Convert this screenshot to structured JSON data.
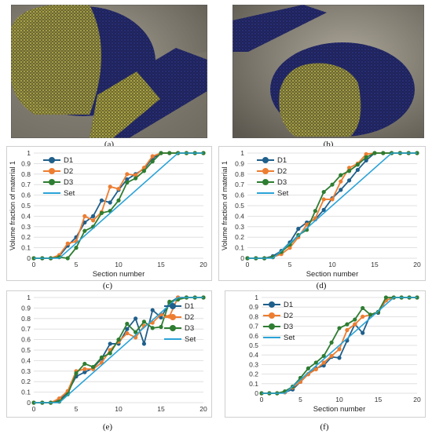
{
  "images": [
    {
      "caption": "(a)"
    },
    {
      "caption": "(b)"
    }
  ],
  "colors": {
    "D1": "#1f5f8b",
    "D2": "#ed7d31",
    "D3": "#2e7d32",
    "Set": "#2aa3d8",
    "grid": "#d9d9d9",
    "axis_text": "#333333"
  },
  "chart_data": [
    {
      "type": "line",
      "caption": "(c)",
      "xlabel": "Section number",
      "ylabel": "Volume fraction of material 1",
      "xlim": [
        0,
        20
      ],
      "ylim": [
        0,
        1
      ],
      "xticks": [
        "0",
        "5",
        "10",
        "15",
        "20"
      ],
      "yticks": [
        "0",
        "0.1",
        "0.2",
        "0.3",
        "0.4",
        "0.5",
        "0.6",
        "0.7",
        "0.8",
        "0.9",
        "1"
      ],
      "grid": "horizontal",
      "legend_position": "top-left",
      "series": [
        {
          "name": "D1",
          "x": [
            0,
            1,
            2,
            3,
            4,
            5,
            6,
            7,
            8,
            9,
            10,
            11,
            12,
            13,
            14,
            15,
            16,
            17,
            18,
            19,
            20
          ],
          "y": [
            0,
            0,
            0,
            0.02,
            0.12,
            0.2,
            0.34,
            0.4,
            0.55,
            0.53,
            0.65,
            0.75,
            0.8,
            0.85,
            0.95,
            1,
            1,
            1,
            1,
            1,
            1
          ]
        },
        {
          "name": "D2",
          "x": [
            0,
            1,
            2,
            3,
            4,
            5,
            6,
            7,
            8,
            9,
            10,
            11,
            12,
            13,
            14,
            15,
            16,
            17,
            18,
            19,
            20
          ],
          "y": [
            0,
            0,
            0,
            0.03,
            0.14,
            0.16,
            0.4,
            0.36,
            0.44,
            0.68,
            0.66,
            0.8,
            0.79,
            0.86,
            0.97,
            1,
            1,
            1,
            1,
            1,
            1
          ]
        },
        {
          "name": "D3",
          "x": [
            0,
            1,
            2,
            3,
            4,
            5,
            6,
            7,
            8,
            9,
            10,
            11,
            12,
            13,
            14,
            15,
            16,
            17,
            18,
            19,
            20
          ],
          "y": [
            0,
            0,
            0,
            0.01,
            0,
            0.1,
            0.26,
            0.3,
            0.43,
            0.45,
            0.55,
            0.72,
            0.76,
            0.83,
            0.92,
            1,
            1,
            1,
            1,
            1,
            1
          ]
        },
        {
          "name": "Set",
          "x": [
            0,
            3,
            17,
            20
          ],
          "y": [
            0,
            0,
            1,
            1
          ],
          "markers": false
        }
      ]
    },
    {
      "type": "line",
      "caption": "(d)",
      "xlabel": "Section number",
      "ylabel": "Volume fraction of material 1",
      "xlim": [
        0,
        20
      ],
      "ylim": [
        0,
        1
      ],
      "xticks": [
        "0",
        "5",
        "10",
        "15",
        "20"
      ],
      "yticks": [
        "0",
        "0.1",
        "0.2",
        "0.3",
        "0.4",
        "0.5",
        "0.6",
        "0.7",
        "0.8",
        "0.9",
        "1"
      ],
      "grid": "horizontal",
      "legend_position": "top-left",
      "series": [
        {
          "name": "D1",
          "x": [
            0,
            1,
            2,
            3,
            4,
            5,
            6,
            7,
            8,
            9,
            10,
            11,
            12,
            13,
            14,
            15,
            16,
            17,
            18,
            19,
            20
          ],
          "y": [
            0,
            0,
            0,
            0.02,
            0.07,
            0.15,
            0.28,
            0.34,
            0.37,
            0.46,
            0.57,
            0.65,
            0.74,
            0.84,
            0.93,
            1,
            1,
            1,
            1,
            1,
            1
          ]
        },
        {
          "name": "D2",
          "x": [
            0,
            1,
            2,
            3,
            4,
            5,
            6,
            7,
            8,
            9,
            10,
            11,
            12,
            13,
            14,
            15,
            16,
            17,
            18,
            19,
            20
          ],
          "y": [
            0,
            0,
            0,
            0.01,
            0.04,
            0.1,
            0.2,
            0.32,
            0.38,
            0.56,
            0.56,
            0.73,
            0.86,
            0.9,
            0.99,
            1,
            1,
            1,
            1,
            1,
            1
          ]
        },
        {
          "name": "D3",
          "x": [
            0,
            1,
            2,
            3,
            4,
            5,
            6,
            7,
            8,
            9,
            10,
            11,
            12,
            13,
            14,
            15,
            16,
            17,
            18,
            19,
            20
          ],
          "y": [
            0,
            0,
            0,
            0.01,
            0.06,
            0.13,
            0.22,
            0.27,
            0.45,
            0.63,
            0.7,
            0.79,
            0.83,
            0.89,
            0.96,
            1,
            1,
            1,
            1,
            1,
            1
          ]
        },
        {
          "name": "Set",
          "x": [
            0,
            3,
            17,
            20
          ],
          "y": [
            0,
            0,
            1,
            1
          ],
          "markers": false
        }
      ]
    },
    {
      "type": "line",
      "caption": "(e)",
      "xlabel": "",
      "ylabel": "",
      "xlim": [
        0,
        20
      ],
      "ylim": [
        0,
        1
      ],
      "xticks": [
        "0",
        "5",
        "10",
        "15",
        "20"
      ],
      "yticks": [
        "0",
        "0.1",
        "0.2",
        "0.3",
        "0.4",
        "0.5",
        "0.6",
        "0.7",
        "0.8",
        "0.9",
        "1"
      ],
      "grid": "horizontal",
      "legend_position": "top-right",
      "series": [
        {
          "name": "D1",
          "x": [
            0,
            1,
            2,
            3,
            4,
            5,
            6,
            7,
            8,
            9,
            10,
            11,
            12,
            13,
            14,
            15,
            16,
            17,
            18,
            19,
            20
          ],
          "y": [
            0,
            0,
            0,
            0.02,
            0.1,
            0.25,
            0.29,
            0.33,
            0.42,
            0.56,
            0.56,
            0.7,
            0.8,
            0.56,
            0.88,
            0.81,
            0.95,
            1,
            1,
            1,
            1
          ]
        },
        {
          "name": "D2",
          "x": [
            0,
            1,
            2,
            3,
            4,
            5,
            6,
            7,
            8,
            9,
            10,
            11,
            12,
            13,
            14,
            15,
            16,
            17,
            18,
            19,
            20
          ],
          "y": [
            0,
            0,
            0,
            0.04,
            0.11,
            0.3,
            0.32,
            0.32,
            0.38,
            0.5,
            0.58,
            0.66,
            0.62,
            0.73,
            0.76,
            0.84,
            0.82,
            1,
            1,
            1,
            1
          ]
        },
        {
          "name": "D3",
          "x": [
            0,
            1,
            2,
            3,
            4,
            5,
            6,
            7,
            8,
            9,
            10,
            11,
            12,
            13,
            14,
            15,
            16,
            17,
            18,
            19,
            20
          ],
          "y": [
            0,
            0,
            0,
            0.01,
            0.08,
            0.28,
            0.37,
            0.34,
            0.43,
            0.47,
            0.6,
            0.75,
            0.67,
            0.77,
            0.71,
            0.72,
            0.96,
            0.98,
            1,
            1,
            1
          ]
        },
        {
          "name": "Set",
          "x": [
            0,
            3,
            17,
            20
          ],
          "y": [
            0,
            0,
            1,
            1
          ],
          "markers": false
        }
      ]
    },
    {
      "type": "line",
      "caption": "(f)",
      "xlabel": "Section number",
      "ylabel": "",
      "xlim": [
        0,
        20
      ],
      "ylim": [
        0,
        1
      ],
      "xticks": [
        "0",
        "5",
        "10",
        "15",
        "20"
      ],
      "yticks": [
        "0",
        "0.1",
        "0.2",
        "0.3",
        "0.4",
        "0.5",
        "0.6",
        "0.7",
        "0.8",
        "0.9",
        "1"
      ],
      "grid": "horizontal",
      "legend_position": "top-left",
      "series": [
        {
          "name": "D1",
          "x": [
            0,
            1,
            2,
            3,
            4,
            5,
            6,
            7,
            8,
            9,
            10,
            11,
            12,
            13,
            14,
            15,
            16,
            17,
            18,
            19,
            20
          ],
          "y": [
            0,
            0,
            0,
            0.01,
            0.04,
            0.12,
            0.2,
            0.26,
            0.29,
            0.38,
            0.37,
            0.55,
            0.72,
            0.63,
            0.82,
            0.84,
            0.97,
            1,
            1,
            1,
            1
          ]
        },
        {
          "name": "D2",
          "x": [
            0,
            1,
            2,
            3,
            4,
            5,
            6,
            7,
            8,
            9,
            10,
            11,
            12,
            13,
            14,
            15,
            16,
            17,
            18,
            19,
            20
          ],
          "y": [
            0,
            0,
            0,
            0.01,
            0.06,
            0.12,
            0.2,
            0.25,
            0.32,
            0.39,
            0.46,
            0.66,
            0.72,
            0.8,
            0.82,
            0.85,
            0.97,
            1,
            1,
            1,
            1
          ]
        },
        {
          "name": "D3",
          "x": [
            0,
            1,
            2,
            3,
            4,
            5,
            6,
            7,
            8,
            9,
            10,
            11,
            12,
            13,
            14,
            15,
            16,
            17,
            18,
            19,
            20
          ],
          "y": [
            0,
            0,
            0,
            0.02,
            0.07,
            0.16,
            0.26,
            0.32,
            0.39,
            0.53,
            0.68,
            0.72,
            0.77,
            0.89,
            0.82,
            0.85,
            1,
            1,
            1,
            1,
            1
          ]
        },
        {
          "name": "Set",
          "x": [
            0,
            3,
            17,
            20
          ],
          "y": [
            0,
            0,
            1,
            1
          ],
          "markers": false
        }
      ]
    }
  ]
}
